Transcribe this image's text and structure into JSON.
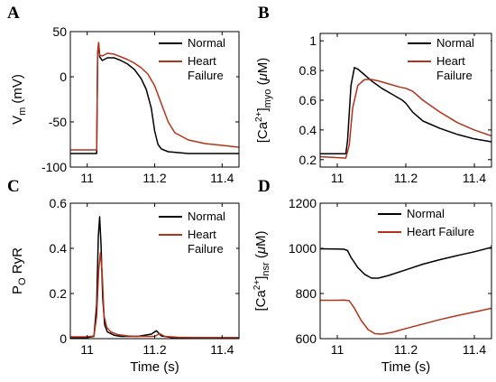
{
  "figure": {
    "panels": [
      "A",
      "B",
      "C",
      "D"
    ]
  },
  "colors": {
    "normal": "#000000",
    "heart_failure": "#b5321a"
  },
  "chart_data": [
    {
      "panel": "A",
      "type": "line",
      "title": "",
      "xlabel": "",
      "ylabel_parts": [
        "V",
        "m",
        " (mV)"
      ],
      "xlim": [
        10.95,
        11.45
      ],
      "ylim": [
        -100,
        50
      ],
      "xticks": [
        11,
        11.2,
        11.4
      ],
      "yticks": [
        -100,
        -50,
        0,
        50
      ],
      "xtick_labels": [
        "11",
        "11.2",
        "11.4"
      ],
      "ytick_labels": [
        "-100",
        "-50",
        "0",
        "50"
      ],
      "legend": {
        "placement": "top-right",
        "entries": [
          [
            "Normal"
          ],
          [
            "Heart",
            "Failure"
          ]
        ]
      },
      "series": [
        {
          "name": "Normal",
          "color": "#000000",
          "x": [
            10.95,
            11.028,
            11.031,
            11.034,
            11.037,
            11.045,
            11.06,
            11.08,
            11.1,
            11.12,
            11.14,
            11.16,
            11.175,
            11.19,
            11.2,
            11.21,
            11.22,
            11.24,
            11.3,
            11.45
          ],
          "y": [
            -85,
            -85,
            25,
            37,
            22,
            18,
            21,
            21,
            18,
            14,
            8,
            -2,
            -14,
            -35,
            -60,
            -75,
            -80,
            -83,
            -85,
            -85
          ]
        },
        {
          "name": "Heart Failure",
          "color": "#b5321a",
          "x": [
            10.95,
            11.028,
            11.031,
            11.034,
            11.037,
            11.045,
            11.06,
            11.08,
            11.1,
            11.12,
            11.14,
            11.16,
            11.18,
            11.2,
            11.22,
            11.24,
            11.26,
            11.3,
            11.35,
            11.45
          ],
          "y": [
            -81,
            -81,
            28,
            38,
            24,
            23,
            26,
            25,
            22,
            19,
            15,
            10,
            3,
            -10,
            -30,
            -50,
            -62,
            -70,
            -74,
            -78
          ]
        }
      ]
    },
    {
      "panel": "B",
      "type": "line",
      "title": "",
      "xlabel": "",
      "ylabel_parts": [
        "[Ca",
        "2+",
        "]",
        "myo",
        " (",
        "μ",
        "M)"
      ],
      "xlim": [
        10.95,
        11.45
      ],
      "ylim": [
        0.15,
        1.05
      ],
      "xticks": [
        11,
        11.2,
        11.4
      ],
      "yticks": [
        0.2,
        0.4,
        0.6,
        0.8,
        1
      ],
      "xtick_labels": [
        "11",
        "11.2",
        "11.4"
      ],
      "ytick_labels": [
        "0.2",
        "0.4",
        "0.6",
        "0.8",
        "1"
      ],
      "legend": {
        "placement": "top-right",
        "entries": [
          [
            "Normal"
          ],
          [
            "Heart",
            "Failure"
          ]
        ]
      },
      "series": [
        {
          "name": "Normal",
          "color": "#000000",
          "x": [
            10.95,
            11.025,
            11.03,
            11.04,
            11.05,
            11.06,
            11.08,
            11.1,
            11.13,
            11.16,
            11.19,
            11.2,
            11.22,
            11.25,
            11.3,
            11.35,
            11.4,
            11.45
          ],
          "y": [
            0.24,
            0.24,
            0.33,
            0.7,
            0.82,
            0.81,
            0.77,
            0.73,
            0.68,
            0.64,
            0.6,
            0.58,
            0.52,
            0.46,
            0.41,
            0.37,
            0.34,
            0.32
          ]
        },
        {
          "name": "Heart Failure",
          "color": "#b5321a",
          "x": [
            10.95,
            11.025,
            11.035,
            11.045,
            11.06,
            11.08,
            11.1,
            11.12,
            11.15,
            11.18,
            11.2,
            11.22,
            11.25,
            11.3,
            11.35,
            11.4,
            11.45
          ],
          "y": [
            0.22,
            0.21,
            0.3,
            0.55,
            0.7,
            0.74,
            0.74,
            0.73,
            0.71,
            0.69,
            0.68,
            0.66,
            0.6,
            0.52,
            0.45,
            0.4,
            0.36
          ]
        }
      ]
    },
    {
      "panel": "C",
      "type": "line",
      "title": "",
      "xlabel": "Time (s)",
      "ylabel_parts": [
        "P",
        "O",
        " RyR"
      ],
      "xlim": [
        10.95,
        11.45
      ],
      "ylim": [
        0,
        0.6
      ],
      "xticks": [
        11,
        11.2,
        11.4
      ],
      "yticks": [
        0,
        0.2,
        0.4,
        0.6
      ],
      "xtick_labels": [
        "11",
        "11.2",
        "11.4"
      ],
      "ytick_labels": [
        "0",
        "0.2",
        "0.4",
        "0.6"
      ],
      "legend": {
        "placement": "top-right",
        "entries": [
          [
            "Normal"
          ],
          [
            "Heart",
            "Failure"
          ]
        ]
      },
      "series": [
        {
          "name": "Normal",
          "color": "#000000",
          "x": [
            10.95,
            11.0,
            11.02,
            11.028,
            11.033,
            11.037,
            11.041,
            11.046,
            11.052,
            11.06,
            11.08,
            11.1,
            11.15,
            11.19,
            11.205,
            11.22,
            11.25,
            11.3,
            11.45
          ],
          "y": [
            0.005,
            0.005,
            0.01,
            0.15,
            0.45,
            0.54,
            0.42,
            0.18,
            0.06,
            0.03,
            0.015,
            0.01,
            0.01,
            0.02,
            0.035,
            0.012,
            0.005,
            0.003,
            0.003
          ]
        },
        {
          "name": "Heart Failure",
          "color": "#b5321a",
          "x": [
            10.95,
            11.0,
            11.02,
            11.028,
            11.034,
            11.039,
            11.044,
            11.05,
            11.058,
            11.07,
            11.09,
            11.12,
            11.15,
            11.2,
            11.215,
            11.23,
            11.27,
            11.33,
            11.45
          ],
          "y": [
            0.008,
            0.008,
            0.012,
            0.1,
            0.3,
            0.38,
            0.3,
            0.1,
            0.05,
            0.03,
            0.018,
            0.012,
            0.01,
            0.01,
            0.022,
            0.01,
            0.006,
            0.005,
            0.005
          ]
        }
      ]
    },
    {
      "panel": "D",
      "type": "line",
      "title": "",
      "xlabel": "Time (s)",
      "ylabel_parts": [
        "[Ca",
        "2+",
        "]",
        "nsr",
        " (",
        "μ",
        "M)"
      ],
      "xlim": [
        10.95,
        11.45
      ],
      "ylim": [
        600,
        1200
      ],
      "xticks": [
        11,
        11.2,
        11.4
      ],
      "yticks": [
        600,
        800,
        1000,
        1200
      ],
      "xtick_labels": [
        "11",
        "11.2",
        "11.4"
      ],
      "ytick_labels": [
        "600",
        "800",
        "1000",
        "1200"
      ],
      "legend": {
        "placement": "top-right",
        "entries": [
          [
            "Normal"
          ],
          [
            "Heart Failure"
          ]
        ]
      },
      "series": [
        {
          "name": "Normal",
          "color": "#000000",
          "x": [
            10.95,
            11.0,
            11.02,
            11.03,
            11.04,
            11.06,
            11.08,
            11.1,
            11.12,
            11.15,
            11.2,
            11.25,
            11.3,
            11.35,
            11.4,
            11.45
          ],
          "y": [
            998,
            997,
            996,
            990,
            960,
            915,
            885,
            868,
            868,
            880,
            905,
            930,
            950,
            968,
            985,
            1005
          ]
        },
        {
          "name": "Heart Failure",
          "color": "#b5321a",
          "x": [
            10.95,
            11.0,
            11.02,
            11.035,
            11.05,
            11.07,
            11.09,
            11.11,
            11.13,
            11.16,
            11.2,
            11.25,
            11.3,
            11.35,
            11.4,
            11.45
          ],
          "y": [
            770,
            770,
            771,
            768,
            735,
            680,
            640,
            622,
            620,
            628,
            645,
            665,
            685,
            702,
            718,
            735
          ]
        }
      ]
    }
  ]
}
